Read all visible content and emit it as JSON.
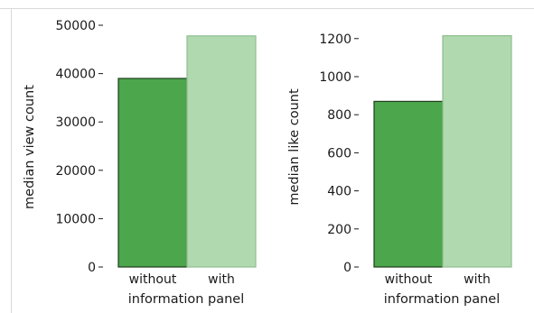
{
  "chart_data": [
    {
      "type": "bar",
      "categories": [
        "without",
        "with"
      ],
      "values": [
        39000,
        47800
      ],
      "colors": [
        "#4ca64c",
        "#b0d9b0"
      ],
      "edge_colors": [
        "#1e3d1e",
        "#8fbf8f"
      ],
      "xlabel": "information panel",
      "ylabel": "median view count",
      "ylim": [
        0,
        50000
      ],
      "yticks": [
        0,
        10000,
        20000,
        30000,
        40000,
        50000
      ],
      "ytick_labels": [
        "0",
        "10000",
        "20000",
        "30000",
        "40000",
        "50000"
      ],
      "grid": false
    },
    {
      "type": "bar",
      "categories": [
        "without",
        "with"
      ],
      "values": [
        870,
        1215
      ],
      "colors": [
        "#4ca64c",
        "#b0d9b0"
      ],
      "edge_colors": [
        "#1e3d1e",
        "#8fbf8f"
      ],
      "xlabel": "information panel",
      "ylabel": "median like count",
      "ylim": [
        0,
        1270
      ],
      "yticks": [
        0,
        200,
        400,
        600,
        800,
        1000,
        1200
      ],
      "ytick_labels": [
        "0",
        "200",
        "400",
        "600",
        "800",
        "1000",
        "1200"
      ],
      "grid": false
    }
  ]
}
